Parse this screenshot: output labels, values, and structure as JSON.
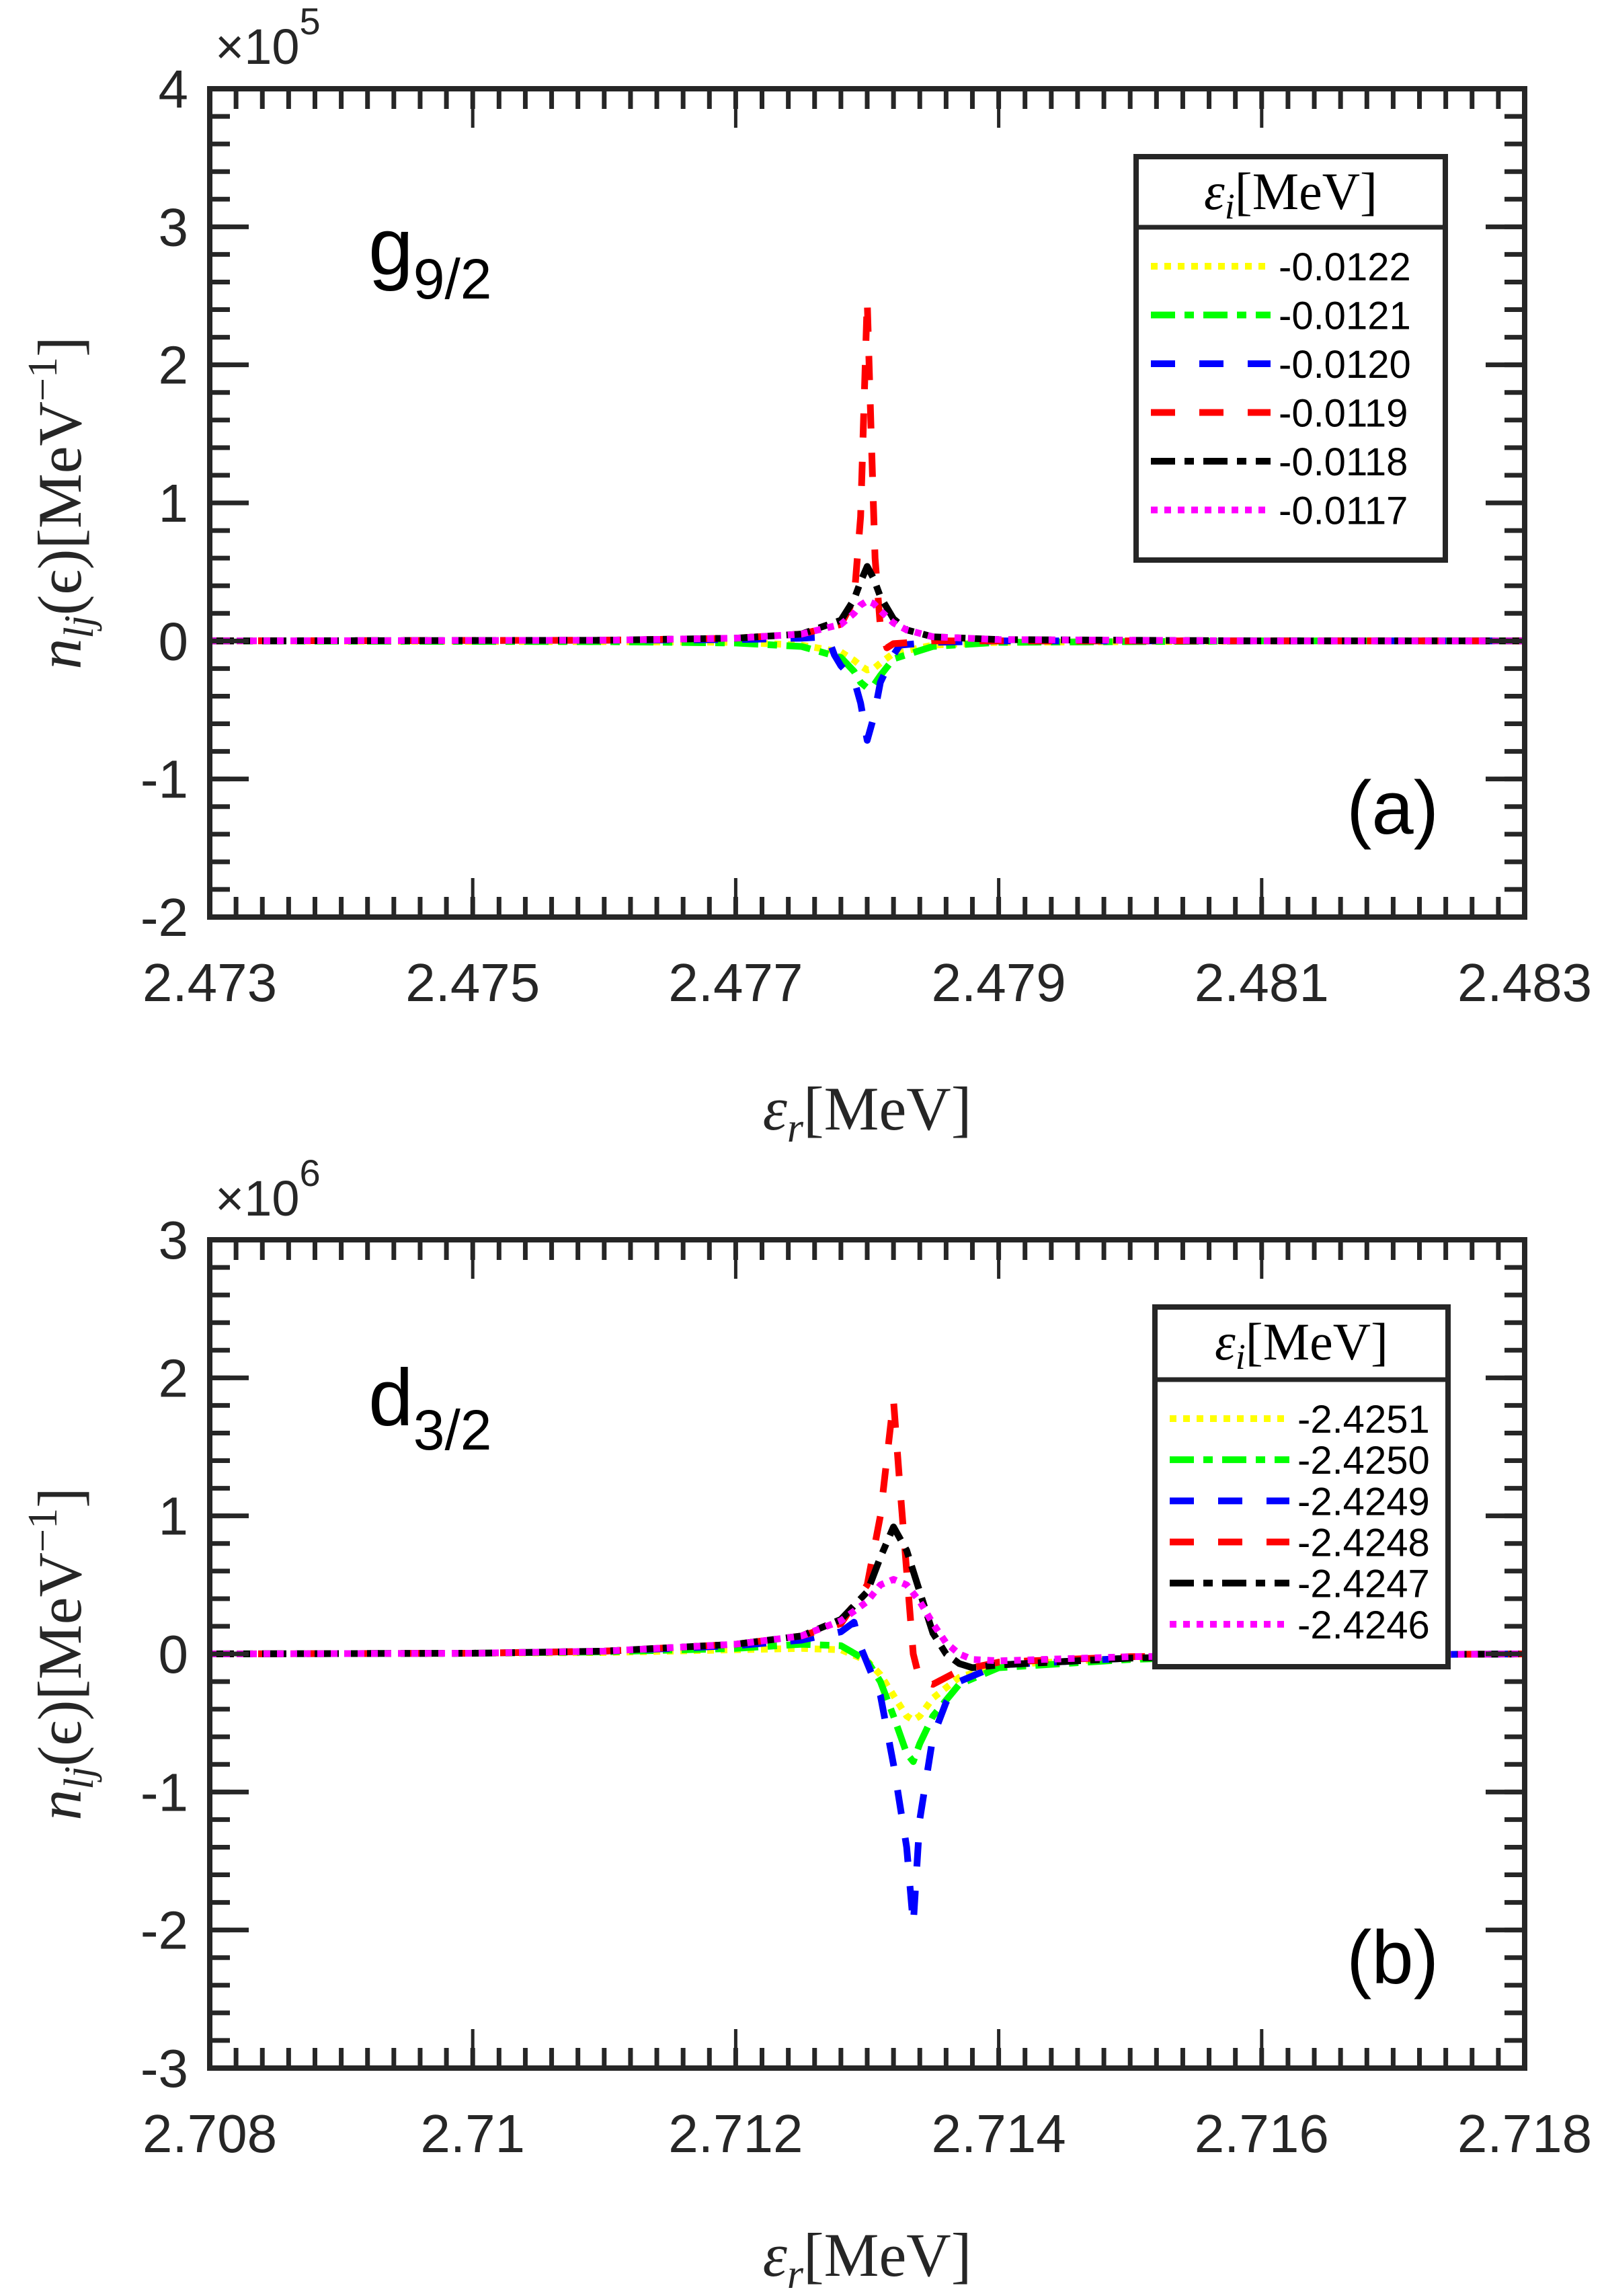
{
  "chart_data": [
    {
      "type": "line",
      "panel_label": "(a)",
      "orbital": {
        "base": "g",
        "sub": "9/2"
      },
      "xlabel": {
        "symbol": "ε",
        "sub": "r",
        "unit": "[MeV]"
      },
      "ylabel": {
        "symbol": "n",
        "sub": "lj",
        "arg": "(ϵ)",
        "unit": "[MeV",
        "unit_exp": "−1",
        "unit_close": "]"
      },
      "y_multiplier": {
        "prefix": "×10",
        "exp": "5"
      },
      "xlim": [
        2.473,
        2.483
      ],
      "ylim": [
        -2,
        4
      ],
      "xticks": [
        2.473,
        2.475,
        2.477,
        2.479,
        2.481,
        2.483
      ],
      "xtick_labels": [
        "2.473",
        "2.475",
        "2.477",
        "2.479",
        "2.481",
        "2.483"
      ],
      "x_minor_step": 0.0002,
      "yticks": [
        -2,
        -1,
        0,
        1,
        2,
        3,
        4
      ],
      "ytick_labels": [
        "-2",
        "-1",
        "0",
        "1",
        "2",
        "3",
        "4"
      ],
      "y_minor_step": 0.2,
      "grid": false,
      "legend": {
        "title": "εi [MeV]",
        "title_symbol": "ε",
        "title_sub": "i",
        "title_unit": "[MeV]",
        "placement": "top-right"
      },
      "series": [
        {
          "name": "-0.0122",
          "color": "#ffff00",
          "style": "dotted",
          "points": [
            [
              2.473,
              0
            ],
            [
              2.476,
              -0.005
            ],
            [
              2.477,
              -0.01
            ],
            [
              2.4775,
              -0.03
            ],
            [
              2.4778,
              -0.08
            ],
            [
              2.4779,
              -0.14
            ],
            [
              2.47795,
              -0.18
            ],
            [
              2.478,
              -0.21
            ],
            [
              2.47805,
              -0.2
            ],
            [
              2.4781,
              -0.16
            ],
            [
              2.4782,
              -0.09
            ],
            [
              2.4785,
              -0.03
            ],
            [
              2.479,
              -0.01
            ],
            [
              2.481,
              0
            ],
            [
              2.483,
              0
            ]
          ]
        },
        {
          "name": "-0.0121",
          "color": "#00ff00",
          "style": "dashdot",
          "points": [
            [
              2.473,
              0
            ],
            [
              2.476,
              -0.005
            ],
            [
              2.477,
              -0.015
            ],
            [
              2.4775,
              -0.04
            ],
            [
              2.4778,
              -0.12
            ],
            [
              2.4779,
              -0.22
            ],
            [
              2.47795,
              -0.3
            ],
            [
              2.478,
              -0.34
            ],
            [
              2.47805,
              -0.32
            ],
            [
              2.4781,
              -0.25
            ],
            [
              2.4782,
              -0.13
            ],
            [
              2.4785,
              -0.04
            ],
            [
              2.479,
              -0.01
            ],
            [
              2.481,
              0
            ],
            [
              2.483,
              0
            ]
          ]
        },
        {
          "name": "-0.0120",
          "color": "#0000ff",
          "style": "dashed",
          "points": [
            [
              2.473,
              0
            ],
            [
              2.476,
              0.005
            ],
            [
              2.477,
              0.01
            ],
            [
              2.4775,
              0.02
            ],
            [
              2.4777,
              0.03
            ],
            [
              2.47775,
              -0.1
            ],
            [
              2.4778,
              -0.18
            ],
            [
              2.4779,
              -0.28
            ],
            [
              2.47795,
              -0.45
            ],
            [
              2.478,
              -0.72
            ],
            [
              2.47805,
              -0.55
            ],
            [
              2.4781,
              -0.3
            ],
            [
              2.4782,
              -0.1
            ],
            [
              2.47825,
              -0.03
            ],
            [
              2.4785,
              -0.01
            ],
            [
              2.479,
              0
            ],
            [
              2.483,
              0
            ]
          ]
        },
        {
          "name": "-0.0119",
          "color": "#ff0000",
          "style": "dashed",
          "points": [
            [
              2.473,
              0
            ],
            [
              2.476,
              0.005
            ],
            [
              2.477,
              0.02
            ],
            [
              2.4775,
              0.05
            ],
            [
              2.4778,
              0.12
            ],
            [
              2.4779,
              0.3
            ],
            [
              2.47795,
              0.9
            ],
            [
              2.478,
              2.47
            ],
            [
              2.47803,
              1.5
            ],
            [
              2.47806,
              0.6
            ],
            [
              2.4781,
              0.1
            ],
            [
              2.47815,
              -0.05
            ],
            [
              2.4782,
              -0.02
            ],
            [
              2.4785,
              0
            ],
            [
              2.483,
              0
            ]
          ]
        },
        {
          "name": "-0.0118",
          "color": "#000000",
          "style": "dashdot",
          "points": [
            [
              2.473,
              0
            ],
            [
              2.476,
              0.005
            ],
            [
              2.477,
              0.02
            ],
            [
              2.4775,
              0.05
            ],
            [
              2.4778,
              0.15
            ],
            [
              2.4779,
              0.3
            ],
            [
              2.47795,
              0.43
            ],
            [
              2.478,
              0.54
            ],
            [
              2.47805,
              0.45
            ],
            [
              2.4781,
              0.32
            ],
            [
              2.4782,
              0.16
            ],
            [
              2.4783,
              0.08
            ],
            [
              2.4785,
              0.03
            ],
            [
              2.479,
              0.01
            ],
            [
              2.481,
              0
            ],
            [
              2.483,
              0
            ]
          ]
        },
        {
          "name": "-0.0117",
          "color": "#ff00ff",
          "style": "dotted",
          "points": [
            [
              2.473,
              0
            ],
            [
              2.476,
              0.005
            ],
            [
              2.477,
              0.02
            ],
            [
              2.4775,
              0.05
            ],
            [
              2.4778,
              0.12
            ],
            [
              2.4779,
              0.2
            ],
            [
              2.47795,
              0.26
            ],
            [
              2.478,
              0.29
            ],
            [
              2.47805,
              0.27
            ],
            [
              2.4781,
              0.22
            ],
            [
              2.4782,
              0.13
            ],
            [
              2.4783,
              0.08
            ],
            [
              2.4785,
              0.03
            ],
            [
              2.479,
              0.01
            ],
            [
              2.481,
              0
            ],
            [
              2.483,
              0
            ]
          ]
        }
      ]
    },
    {
      "type": "line",
      "panel_label": "(b)",
      "orbital": {
        "base": "d",
        "sub": "3/2"
      },
      "xlabel": {
        "symbol": "ε",
        "sub": "r",
        "unit": "[MeV]"
      },
      "ylabel": {
        "symbol": "n",
        "sub": "lj",
        "arg": "(ϵ)",
        "unit": "[MeV",
        "unit_exp": "−1",
        "unit_close": "]"
      },
      "y_multiplier": {
        "prefix": "×10",
        "exp": "6"
      },
      "xlim": [
        2.708,
        2.718
      ],
      "ylim": [
        -3,
        3
      ],
      "xticks": [
        2.708,
        2.71,
        2.712,
        2.714,
        2.716,
        2.718
      ],
      "xtick_labels": [
        "2.708",
        "2.71",
        "2.712",
        "2.714",
        "2.716",
        "2.718"
      ],
      "x_minor_step": 0.0002,
      "yticks": [
        -3,
        -2,
        -1,
        0,
        1,
        2,
        3
      ],
      "ytick_labels": [
        "-3",
        "-2",
        "-1",
        "0",
        "1",
        "2",
        "3"
      ],
      "y_minor_step": 0.2,
      "grid": false,
      "legend": {
        "title": "εi [MeV]",
        "title_symbol": "ε",
        "title_sub": "i",
        "title_unit": "[MeV]",
        "placement": "right"
      },
      "series": [
        {
          "name": "-2.4251",
          "color": "#ffff00",
          "style": "dotted",
          "points": [
            [
              2.708,
              0
            ],
            [
              2.71,
              0.005
            ],
            [
              2.711,
              0.01
            ],
            [
              2.712,
              0.03
            ],
            [
              2.7125,
              0.04
            ],
            [
              2.7128,
              0.03
            ],
            [
              2.713,
              -0.05
            ],
            [
              2.7131,
              -0.15
            ],
            [
              2.7132,
              -0.3
            ],
            [
              2.7133,
              -0.45
            ],
            [
              2.71335,
              -0.48
            ],
            [
              2.7134,
              -0.45
            ],
            [
              2.7135,
              -0.32
            ],
            [
              2.7137,
              -0.17
            ],
            [
              2.714,
              -0.08
            ],
            [
              2.715,
              -0.03
            ],
            [
              2.716,
              -0.01
            ],
            [
              2.718,
              0
            ]
          ]
        },
        {
          "name": "-2.4250",
          "color": "#00ff00",
          "style": "dashdot",
          "points": [
            [
              2.708,
              0
            ],
            [
              2.71,
              0.005
            ],
            [
              2.711,
              0.015
            ],
            [
              2.712,
              0.04
            ],
            [
              2.7125,
              0.07
            ],
            [
              2.7128,
              0.06
            ],
            [
              2.713,
              -0.05
            ],
            [
              2.7131,
              -0.2
            ],
            [
              2.7132,
              -0.45
            ],
            [
              2.7133,
              -0.72
            ],
            [
              2.71335,
              -0.78
            ],
            [
              2.7134,
              -0.65
            ],
            [
              2.7135,
              -0.45
            ],
            [
              2.7137,
              -0.22
            ],
            [
              2.714,
              -0.1
            ],
            [
              2.715,
              -0.04
            ],
            [
              2.716,
              -0.01
            ],
            [
              2.718,
              0
            ]
          ]
        },
        {
          "name": "-2.4249",
          "color": "#0000ff",
          "style": "dashed",
          "points": [
            [
              2.708,
              0
            ],
            [
              2.71,
              0.005
            ],
            [
              2.711,
              0.02
            ],
            [
              2.712,
              0.06
            ],
            [
              2.7125,
              0.1
            ],
            [
              2.7128,
              0.16
            ],
            [
              2.7129,
              0.23
            ],
            [
              2.71295,
              0.05
            ],
            [
              2.7131,
              -0.3
            ],
            [
              2.7132,
              -0.8
            ],
            [
              2.7133,
              -1.4
            ],
            [
              2.71335,
              -1.96
            ],
            [
              2.7134,
              -1.2
            ],
            [
              2.7135,
              -0.6
            ],
            [
              2.7136,
              -0.35
            ],
            [
              2.7137,
              -0.2
            ],
            [
              2.714,
              -0.08
            ],
            [
              2.715,
              -0.03
            ],
            [
              2.716,
              -0.01
            ],
            [
              2.718,
              0
            ]
          ]
        },
        {
          "name": "-2.4248",
          "color": "#ff0000",
          "style": "dashed",
          "points": [
            [
              2.708,
              0
            ],
            [
              2.71,
              0.005
            ],
            [
              2.711,
              0.02
            ],
            [
              2.712,
              0.07
            ],
            [
              2.7125,
              0.13
            ],
            [
              2.7128,
              0.22
            ],
            [
              2.713,
              0.5
            ],
            [
              2.7131,
              1.0
            ],
            [
              2.7132,
              1.84
            ],
            [
              2.71325,
              1.2
            ],
            [
              2.7133,
              0.6
            ],
            [
              2.71335,
              0.0
            ],
            [
              2.7134,
              -0.19
            ],
            [
              2.7135,
              -0.22
            ],
            [
              2.7137,
              -0.12
            ],
            [
              2.714,
              -0.06
            ],
            [
              2.715,
              -0.02
            ],
            [
              2.716,
              -0.01
            ],
            [
              2.718,
              0
            ]
          ]
        },
        {
          "name": "-2.4247",
          "color": "#000000",
          "style": "dashdot",
          "points": [
            [
              2.708,
              0
            ],
            [
              2.71,
              0.005
            ],
            [
              2.711,
              0.02
            ],
            [
              2.712,
              0.07
            ],
            [
              2.7125,
              0.13
            ],
            [
              2.7128,
              0.25
            ],
            [
              2.713,
              0.45
            ],
            [
              2.7131,
              0.7
            ],
            [
              2.7132,
              0.92
            ],
            [
              2.7133,
              0.75
            ],
            [
              2.7134,
              0.45
            ],
            [
              2.7135,
              0.15
            ],
            [
              2.7136,
              0.0
            ],
            [
              2.7137,
              -0.07
            ],
            [
              2.7138,
              -0.1
            ],
            [
              2.714,
              -0.08
            ],
            [
              2.715,
              -0.03
            ],
            [
              2.716,
              -0.01
            ],
            [
              2.718,
              0
            ]
          ]
        },
        {
          "name": "-2.4246",
          "color": "#ff00ff",
          "style": "dotted",
          "points": [
            [
              2.708,
              0
            ],
            [
              2.71,
              0.005
            ],
            [
              2.711,
              0.02
            ],
            [
              2.712,
              0.07
            ],
            [
              2.7125,
              0.13
            ],
            [
              2.7128,
              0.24
            ],
            [
              2.713,
              0.38
            ],
            [
              2.7131,
              0.5
            ],
            [
              2.7132,
              0.54
            ],
            [
              2.7133,
              0.5
            ],
            [
              2.7134,
              0.38
            ],
            [
              2.7135,
              0.22
            ],
            [
              2.7136,
              0.08
            ],
            [
              2.7137,
              0.0
            ],
            [
              2.7138,
              -0.04
            ],
            [
              2.714,
              -0.05
            ],
            [
              2.715,
              -0.02
            ],
            [
              2.716,
              -0.01
            ],
            [
              2.718,
              0
            ]
          ]
        }
      ]
    }
  ]
}
